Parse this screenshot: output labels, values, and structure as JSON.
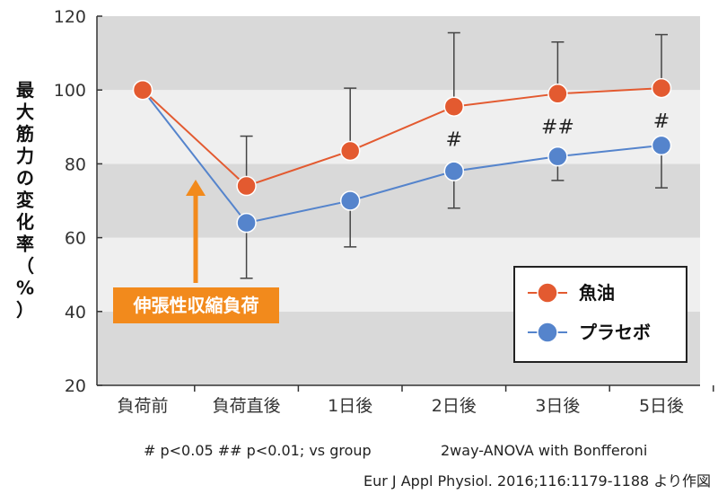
{
  "chart_data": {
    "type": "line",
    "ylabel": "最大筋力の変化率（%）",
    "ylim": [
      20,
      120
    ],
    "yticks": [
      20,
      40,
      60,
      80,
      100,
      120
    ],
    "grid": "alternating horizontal bands",
    "categories": [
      "負荷前",
      "負荷直後",
      "1日後",
      "2日後",
      "3日後",
      "5日後"
    ],
    "series": [
      {
        "name": "魚油",
        "color": "#e35a30",
        "values": [
          100,
          74,
          83.5,
          95.5,
          99,
          100.5
        ],
        "err_upper": [
          100,
          87.5,
          100.5,
          115.5,
          113,
          115
        ],
        "err_lower": [
          100,
          74,
          83.5,
          95.5,
          99,
          100.5
        ]
      },
      {
        "name": "プラセボ",
        "color": "#5584cc",
        "values": [
          100,
          64,
          70,
          78,
          82,
          85
        ],
        "err_upper": [
          100,
          64,
          70,
          78,
          82,
          85
        ],
        "err_lower": [
          100,
          49,
          57.5,
          68,
          75.5,
          73.5
        ]
      }
    ],
    "significance": [
      "",
      "",
      "",
      "#",
      "##",
      "#"
    ],
    "annotation": "伸張性収縮負荷",
    "annotation_color": "#f28a1c",
    "legend_position": "bottom-right",
    "band_dark": "#d9d9d9",
    "band_light": "#efefef"
  },
  "footnote": {
    "stats": "# p<0.05  ## p<0.01; vs group",
    "method": "2way-ANOVA with Bonfferoni",
    "source": "Eur J Appl Physiol. 2016;116:1179-1188 より作図"
  }
}
